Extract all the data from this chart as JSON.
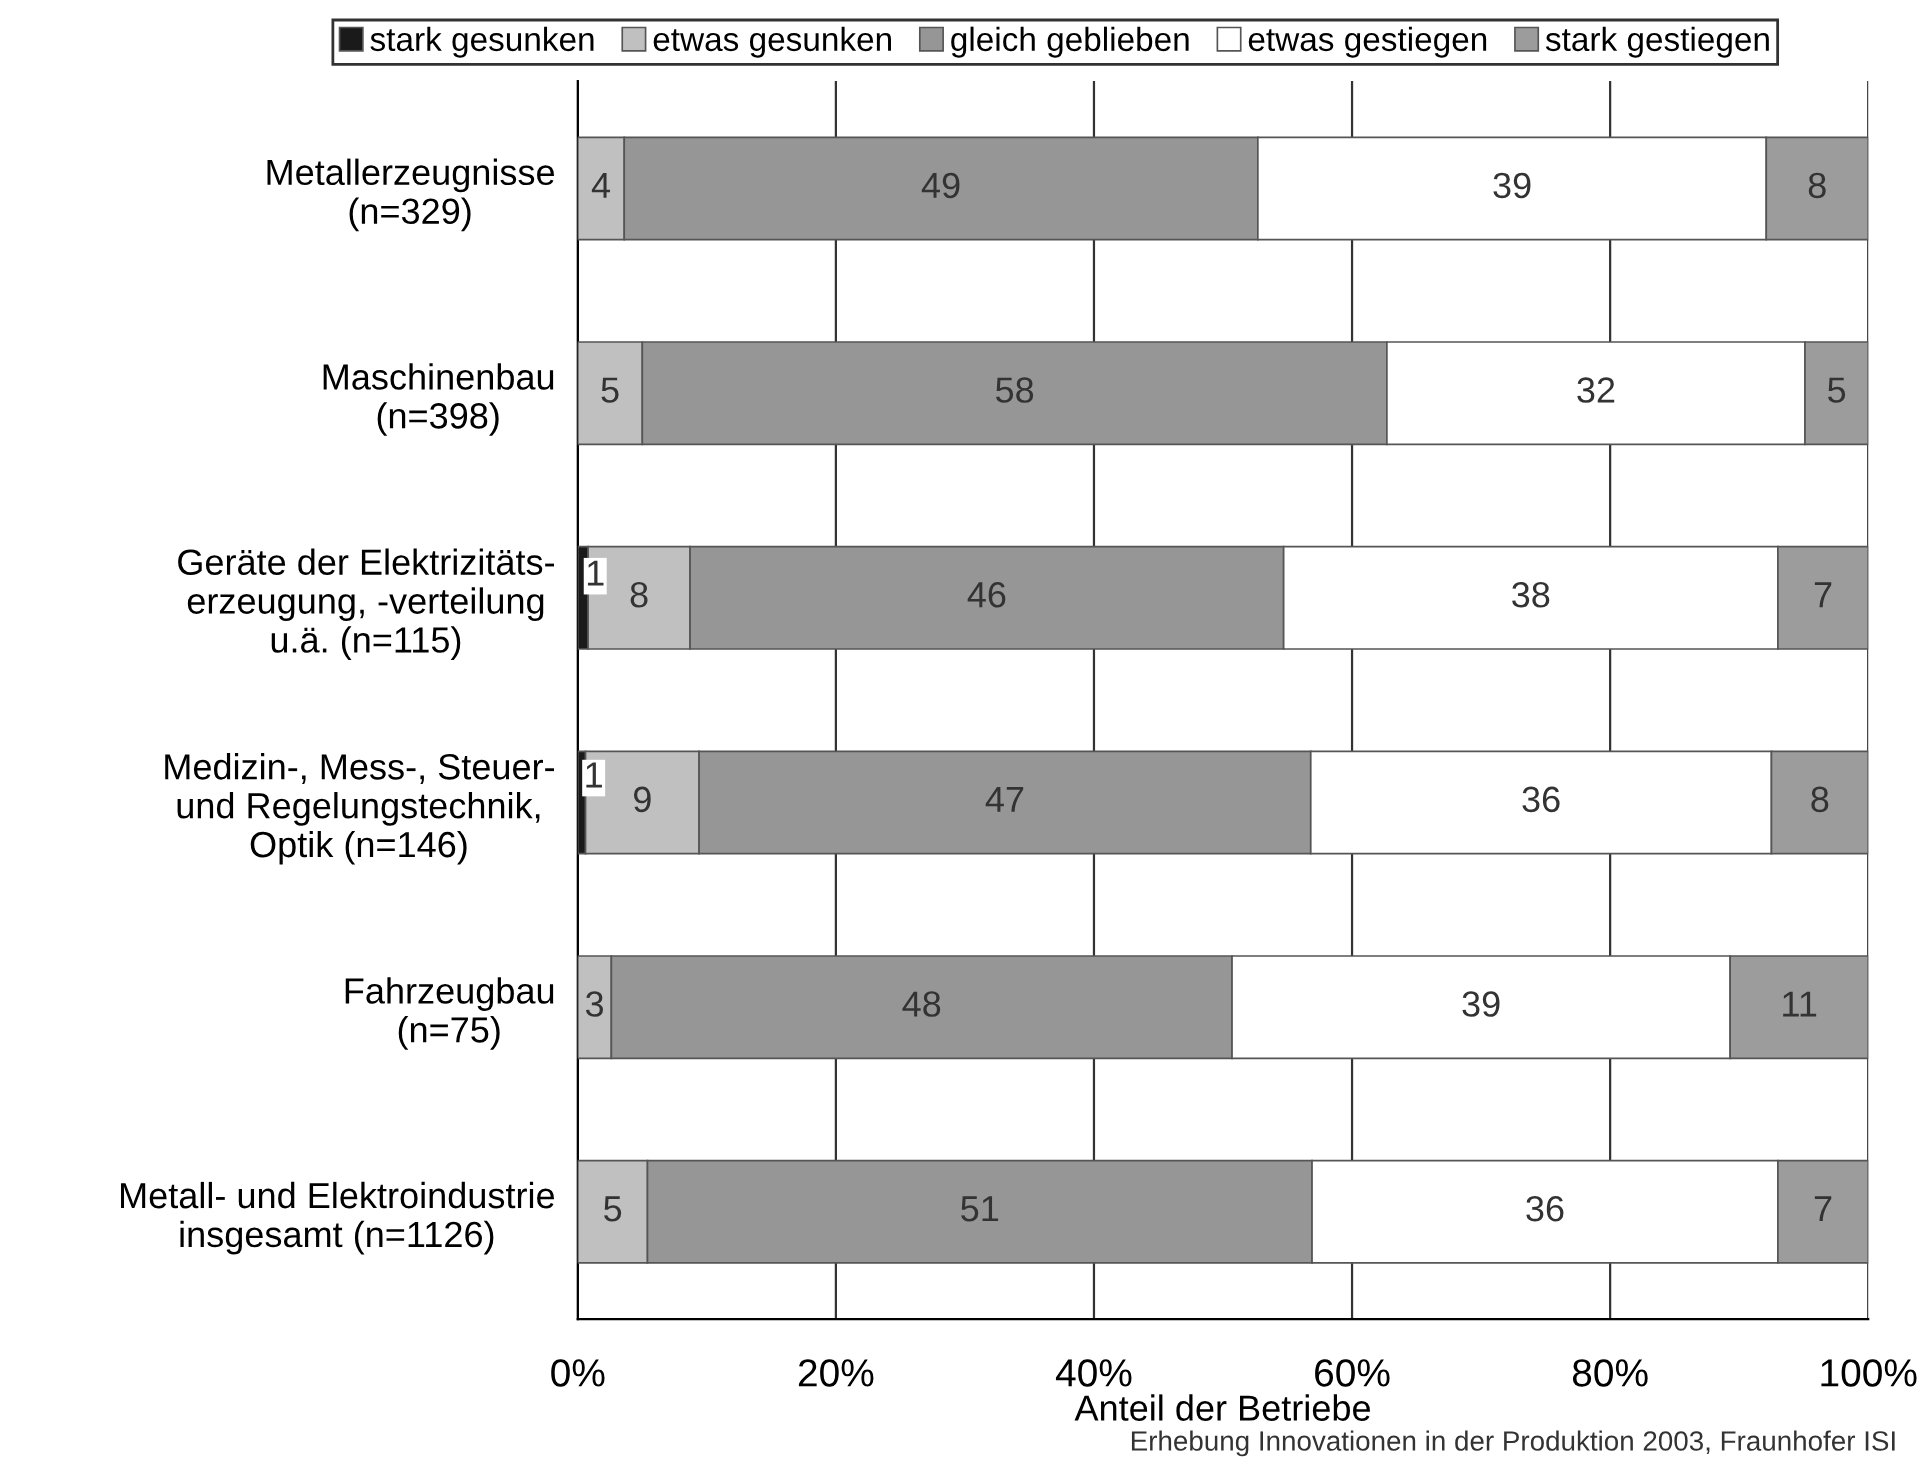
{
  "chart_data": {
    "type": "bar",
    "orientation": "horizontal",
    "stacked": true,
    "categories": [
      "Metallerzeugnisse\n(n=329)",
      "Maschinenbau\n(n=398)",
      "Geräte der Elektrizitäts-\nerzeugung, -verteilung\nu.ä. (n=115)",
      "Medizin-, Mess-, Steuer-\nund Regelungstechnik,\nOptik (n=146)",
      "Fahrzeugbau\n(n=75)",
      "Metall- und Elektroindustrie\ninsgesamt (n=1126)"
    ],
    "series": [
      {
        "name": "stark gesunken",
        "color": "#1a1a1a",
        "values": [
          0,
          0,
          0.8,
          0.6,
          0,
          0
        ],
        "value_labels": [
          null,
          null,
          "1",
          "1",
          null,
          null
        ]
      },
      {
        "name": "etwas gesunken",
        "color": "#c0c0c0",
        "values": [
          3.6,
          5.0,
          7.9,
          8.8,
          2.6,
          5.4
        ],
        "value_labels": [
          "4",
          "5",
          "8",
          "9",
          "3",
          "5"
        ]
      },
      {
        "name": "gleich geblieben",
        "color": "#969696",
        "values": [
          49.1,
          57.7,
          46.0,
          47.4,
          48.1,
          51.5
        ],
        "value_labels": [
          "49",
          "58",
          "46",
          "47",
          "48",
          "51"
        ]
      },
      {
        "name": "etwas gestiegen",
        "color": "#ffffff",
        "values": [
          39.4,
          32.4,
          38.3,
          35.7,
          38.6,
          36.1
        ],
        "value_labels": [
          "39",
          "32",
          "38",
          "36",
          "39",
          "36"
        ]
      },
      {
        "name": "stark gestiegen",
        "color": "#9c9c9c",
        "values": [
          7.9,
          4.9,
          7.0,
          7.5,
          10.7,
          7.0
        ],
        "value_labels": [
          "8",
          "5",
          "7",
          "8",
          "11",
          "7"
        ]
      }
    ],
    "xlim": [
      0,
      100
    ],
    "xticks": [
      {
        "value": 0,
        "label": "0%"
      },
      {
        "value": 20,
        "label": "20%"
      },
      {
        "value": 40,
        "label": "40%"
      },
      {
        "value": 60,
        "label": "60%"
      },
      {
        "value": 80,
        "label": "80%"
      },
      {
        "value": 100,
        "label": "100%"
      }
    ],
    "xlabel": "Anteil der Betriebe",
    "grid": "x",
    "legend": "top",
    "annotations": [
      "Erhebung Innovationen in der Produktion 2003, Fraunhofer ISI"
    ]
  }
}
